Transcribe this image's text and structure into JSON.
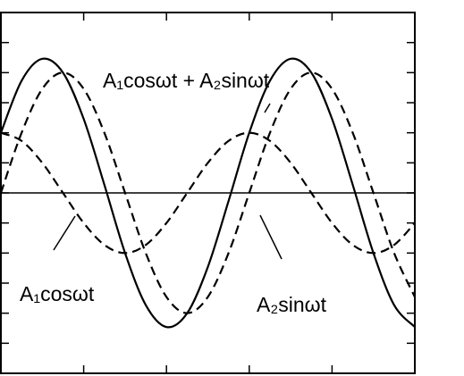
{
  "chart_data": {
    "type": "line",
    "x": [
      0,
      0.25,
      0.5,
      0.75,
      1,
      1.25,
      1.5,
      1.75,
      2,
      2.25,
      2.5,
      2.75,
      3,
      3.25,
      3.5,
      3.75,
      4,
      4.25,
      4.5,
      4.75,
      5
    ],
    "series": [
      {
        "name": "A₁cosωt + A₂sinωt",
        "color": "#000000",
        "dashed": false,
        "values": [
          2,
          3.73,
          4.46,
          4,
          2.46,
          0.27,
          -2,
          -3.73,
          -4.46,
          -4,
          -2.46,
          -0.27,
          2,
          3.73,
          4.46,
          4,
          2.46,
          0.27,
          -2,
          -3.73,
          -4.46
        ]
      },
      {
        "name": "A₁cosωt",
        "color": "#000000",
        "dashed": true,
        "values": [
          2,
          1.73,
          1,
          0,
          -1,
          -1.73,
          -2,
          -1.73,
          -1,
          0,
          1,
          1.73,
          2,
          1.73,
          1,
          0,
          -1,
          -1.73,
          -2,
          -1.73,
          -1
        ]
      },
      {
        "name": "A₂sinωt",
        "color": "#000000",
        "dashed": true,
        "values": [
          0,
          2,
          3.46,
          4,
          3.46,
          2,
          0,
          -2,
          -3.46,
          -4,
          -3.46,
          -2,
          0,
          2,
          3.46,
          4,
          3.46,
          2,
          0,
          -2,
          -3.46
        ]
      }
    ],
    "xlim": [
      0,
      5
    ],
    "xticks": [
      1,
      2,
      3,
      4
    ],
    "ylim": [
      -6,
      6
    ],
    "yticks": [
      -5,
      -4,
      -3,
      -2,
      -1,
      0,
      1,
      2,
      3,
      4,
      5
    ]
  }
}
